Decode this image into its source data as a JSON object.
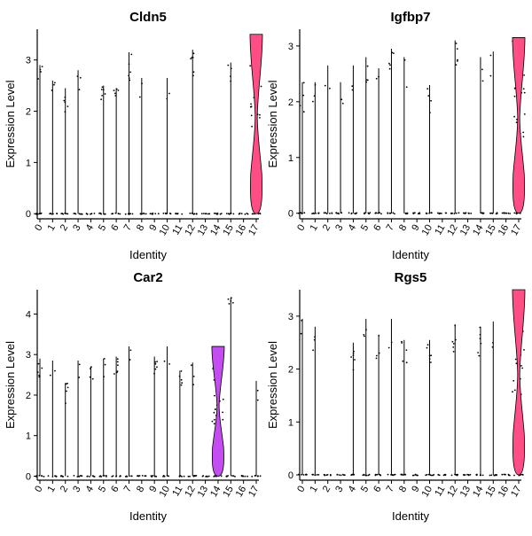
{
  "chart_data": [
    {
      "type": "violin",
      "title": "Cldn5",
      "xlabel": "Identity",
      "ylabel": "Expression Level",
      "categories": [
        "0",
        "1",
        "2",
        "3",
        "4",
        "5",
        "6",
        "7",
        "8",
        "9",
        "10",
        "11",
        "12",
        "13",
        "14",
        "15",
        "16",
        "17"
      ],
      "ylim": [
        -0.1,
        3.6
      ],
      "yticks": [
        0,
        1,
        2,
        3
      ],
      "max_values": [
        2.9,
        2.6,
        2.45,
        2.8,
        0,
        2.5,
        2.45,
        3.15,
        2.65,
        0,
        2.65,
        0,
        3.2,
        0,
        0,
        2.95,
        0,
        3.5
      ],
      "highlight": {
        "category": "17",
        "color": "#FF4D85"
      }
    },
    {
      "type": "violin",
      "title": "Igfbp7",
      "xlabel": "Identity",
      "ylabel": "Expression Level",
      "categories": [
        "0",
        "1",
        "2",
        "3",
        "4",
        "5",
        "6",
        "7",
        "8",
        "9",
        "10",
        "11",
        "12",
        "13",
        "14",
        "15",
        "16",
        "17"
      ],
      "ylim": [
        -0.1,
        3.3
      ],
      "yticks": [
        0,
        1,
        2,
        3
      ],
      "max_values": [
        2.35,
        2.35,
        2.65,
        2.35,
        2.65,
        2.8,
        2.6,
        2.95,
        2.8,
        0,
        2.3,
        0,
        3.1,
        0,
        2.8,
        2.9,
        0,
        3.15
      ],
      "highlight": {
        "category": "17",
        "color": "#FF4D85"
      }
    },
    {
      "type": "violin",
      "title": "Car2",
      "xlabel": "Identity",
      "ylabel": "Expression Level",
      "categories": [
        "0",
        "1",
        "2",
        "3",
        "4",
        "5",
        "6",
        "7",
        "8",
        "9",
        "10",
        "11",
        "12",
        "13",
        "14",
        "15",
        "16",
        "17"
      ],
      "ylim": [
        -0.1,
        4.6
      ],
      "yticks": [
        0,
        1,
        2,
        3,
        4
      ],
      "max_values": [
        2.9,
        2.85,
        2.3,
        2.85,
        2.7,
        2.9,
        2.95,
        3.2,
        0,
        2.95,
        3.2,
        2.6,
        2.8,
        0,
        3.2,
        4.4,
        0,
        2.35
      ],
      "highlight": {
        "category": "14",
        "color": "#C44DF2"
      }
    },
    {
      "type": "violin",
      "title": "Rgs5",
      "xlabel": "Identity",
      "ylabel": "Expression Level",
      "categories": [
        "0",
        "1",
        "2",
        "3",
        "4",
        "5",
        "6",
        "7",
        "8",
        "9",
        "10",
        "11",
        "12",
        "13",
        "14",
        "15",
        "16",
        "17"
      ],
      "ylim": [
        -0.1,
        3.5
      ],
      "yticks": [
        0,
        1,
        2,
        3
      ],
      "max_values": [
        2.95,
        2.8,
        0,
        0,
        2.5,
        2.95,
        2.65,
        2.95,
        2.55,
        0,
        2.55,
        0,
        2.85,
        0,
        2.8,
        2.9,
        0,
        3.5
      ],
      "highlight": {
        "category": "17",
        "color": "#FF4D85"
      }
    }
  ]
}
